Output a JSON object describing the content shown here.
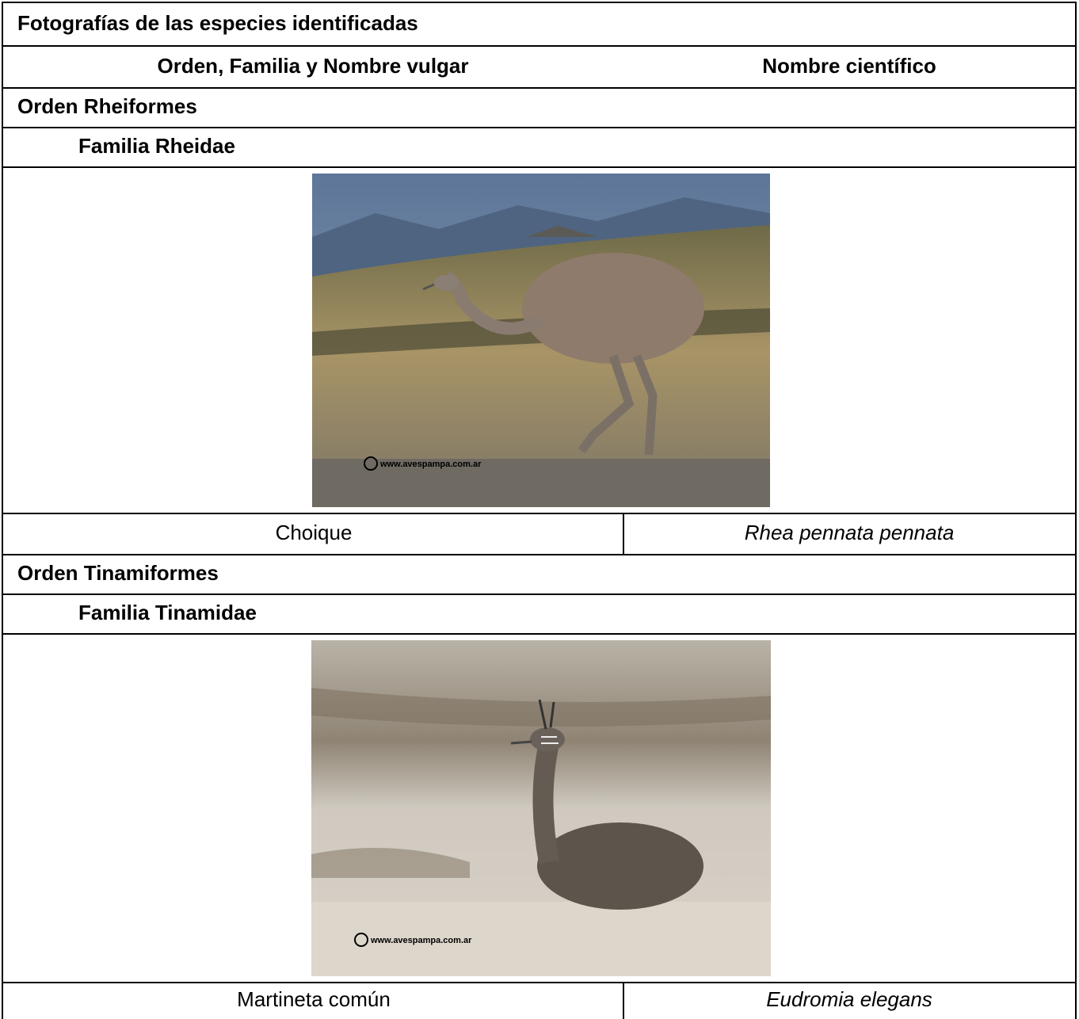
{
  "title": "Fotografías de las especies identificadas",
  "header": [
    "Orden, Familia y Nombre vulgar",
    "Nombre científico"
  ],
  "groups": [
    {
      "order": "Orden Rheiformes",
      "family": "Familia Rheidae",
      "photo_watermark": "www.avespampa.com.ar",
      "common_name": "Choique",
      "scientific_name": "Rhea pennata pennata"
    },
    {
      "order": "Orden Tinamiformes",
      "family": "Familia Tinamidae",
      "photo_watermark": "www.avespampa.com.ar",
      "common_name": "Martineta común",
      "scientific_name": "Eudromia elegans"
    }
  ]
}
